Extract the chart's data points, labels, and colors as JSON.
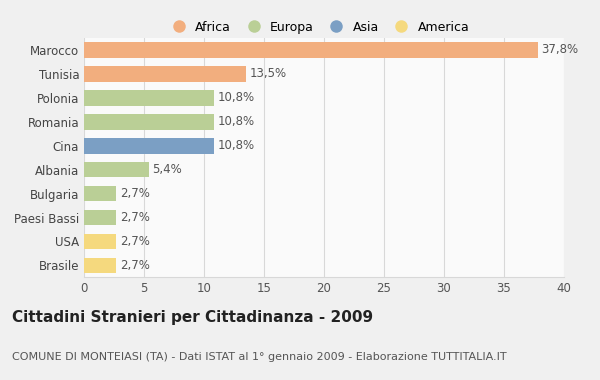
{
  "countries": [
    "Marocco",
    "Tunisia",
    "Polonia",
    "Romania",
    "Cina",
    "Albania",
    "Bulgaria",
    "Paesi Bassi",
    "USA",
    "Brasile"
  ],
  "values": [
    37.8,
    13.5,
    10.8,
    10.8,
    10.8,
    5.4,
    2.7,
    2.7,
    2.7,
    2.7
  ],
  "labels": [
    "37,8%",
    "13,5%",
    "10,8%",
    "10,8%",
    "10,8%",
    "5,4%",
    "2,7%",
    "2,7%",
    "2,7%",
    "2,7%"
  ],
  "categories": [
    "Africa",
    "Africa",
    "Europa",
    "Europa",
    "Asia",
    "Europa",
    "Europa",
    "Europa",
    "America",
    "America"
  ],
  "colors": {
    "Africa": "#F2AE7E",
    "Europa": "#BACF96",
    "Asia": "#7B9FC4",
    "America": "#F5D97E"
  },
  "legend_order": [
    "Africa",
    "Europa",
    "Asia",
    "America"
  ],
  "title": "Cittadini Stranieri per Cittadinanza - 2009",
  "subtitle": "COMUNE DI MONTEIASI (TA) - Dati ISTAT al 1° gennaio 2009 - Elaborazione TUTTITALIA.IT",
  "xlim": [
    0,
    40
  ],
  "xticks": [
    0,
    5,
    10,
    15,
    20,
    25,
    30,
    35,
    40
  ],
  "background_color": "#f0f0f0",
  "bar_background": "#fafafa",
  "grid_color": "#d8d8d8",
  "bar_height": 0.65,
  "title_fontsize": 11,
  "subtitle_fontsize": 8,
  "label_fontsize": 8.5,
  "tick_fontsize": 8.5,
  "legend_fontsize": 9
}
